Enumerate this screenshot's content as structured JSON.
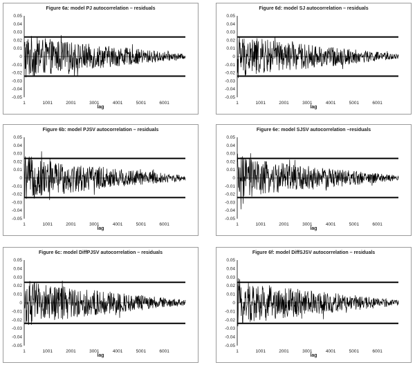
{
  "chart_data": [
    {
      "type": "line",
      "title": "Figure 6a: model PJ autocorrelation – residuals",
      "xlabel": "lag",
      "ylabel": "",
      "x_ticks": [
        "1",
        "1001",
        "2001",
        "3001",
        "4001",
        "5001",
        "6001"
      ],
      "y_ticks": [
        "0.05",
        "0.04",
        "0.03",
        "0.02",
        "0.01",
        "0",
        "-0.01",
        "-0.02",
        "-0.03",
        "-0.04",
        "-0.05"
      ],
      "xlim": [
        1,
        6900
      ],
      "ylim": [
        -0.05,
        0.05
      ],
      "grid": false,
      "reference_lines": [
        0.024,
        -0.024
      ],
      "series": [
        {
          "x": [
            1,
            500,
            1000,
            2000,
            3000,
            4000,
            5000,
            6000,
            6900
          ],
          "values": [
            0.03,
            0.024,
            0.022,
            0.018,
            0.015,
            0.012,
            0.009,
            0.006,
            0.003
          ]
        }
      ]
    },
    {
      "type": "line",
      "title": "Figure 6d: model SJ autocorrelation – residuals",
      "xlabel": "lag",
      "ylabel": "",
      "x_ticks": [
        "1",
        "1001",
        "2001",
        "3001",
        "4001",
        "5001",
        "6001"
      ],
      "y_ticks": [
        "0.05",
        "0.04",
        "0.03",
        "0.02",
        "0.01",
        "0",
        "-0.01",
        "-0.02",
        "-0.03",
        "-0.04",
        "-0.05"
      ],
      "xlim": [
        1,
        6900
      ],
      "ylim": [
        -0.05,
        0.05
      ],
      "grid": false,
      "reference_lines": [
        0.024,
        -0.024
      ],
      "series": [
        {
          "x": [
            1,
            500,
            1000,
            2000,
            3000,
            4000,
            5000,
            6000,
            6900
          ],
          "values": [
            0.03,
            0.024,
            0.022,
            0.018,
            0.015,
            0.012,
            0.009,
            0.006,
            0.003
          ]
        }
      ]
    },
    {
      "type": "line",
      "title": "Figure 6b: model PJSV autocorrelation – residuals",
      "xlabel": "lag",
      "ylabel": "",
      "x_ticks": [
        "1",
        "1001",
        "2001",
        "3001",
        "4001",
        "5001",
        "6001"
      ],
      "y_ticks": [
        "0.05",
        "0.04",
        "0.03",
        "0.02",
        "0.01",
        "0",
        "-0.01",
        "-0.02",
        "-0.03",
        "-0.04",
        "-0.05"
      ],
      "xlim": [
        1,
        6900
      ],
      "ylim": [
        -0.05,
        0.05
      ],
      "grid": false,
      "reference_lines": [
        0.024,
        -0.024
      ],
      "series": [
        {
          "x": [
            1,
            500,
            1000,
            2000,
            3000,
            4000,
            5000,
            6000,
            6900
          ],
          "values": [
            0.03,
            0.024,
            0.022,
            0.018,
            0.015,
            0.012,
            0.009,
            0.006,
            0.003
          ]
        }
      ]
    },
    {
      "type": "line",
      "title": "Figure 6e: model SJSV autocorrelation –residuals",
      "xlabel": "lag",
      "ylabel": "",
      "x_ticks": [
        "1",
        "1001",
        "2001",
        "3001",
        "4001",
        "5001",
        "6001"
      ],
      "y_ticks": [
        "0.05",
        "0.04",
        "0.03",
        "0.02",
        "0.01",
        "0",
        "-0.01",
        "-0.02",
        "-0.03",
        "-0.04",
        "-0.05"
      ],
      "xlim": [
        1,
        6900
      ],
      "ylim": [
        -0.05,
        0.05
      ],
      "grid": false,
      "reference_lines": [
        0.024,
        -0.024
      ],
      "series": [
        {
          "x": [
            1,
            500,
            1000,
            2000,
            3000,
            4000,
            5000,
            6000,
            6900
          ],
          "values": [
            0.03,
            0.024,
            0.022,
            0.018,
            0.015,
            0.012,
            0.009,
            0.006,
            0.003
          ]
        }
      ]
    },
    {
      "type": "line",
      "title": "Figure 6c: model DiffPJSV autocorrelation – residuals",
      "xlabel": "lag",
      "ylabel": "",
      "x_ticks": [
        "1",
        "1001",
        "2001",
        "3001",
        "4001",
        "5001",
        "6001"
      ],
      "y_ticks": [
        "0.05",
        "0.04",
        "0.03",
        "0.02",
        "0.01",
        "0",
        "-0.01",
        "-0.02",
        "-0.03",
        "-0.04",
        "-0.05"
      ],
      "xlim": [
        1,
        6900
      ],
      "ylim": [
        -0.05,
        0.05
      ],
      "grid": false,
      "reference_lines": [
        0.024,
        -0.024
      ],
      "series": [
        {
          "x": [
            1,
            500,
            1000,
            2000,
            3000,
            4000,
            5000,
            6000,
            6900
          ],
          "values": [
            0.03,
            0.024,
            0.022,
            0.018,
            0.015,
            0.012,
            0.009,
            0.006,
            0.003
          ]
        }
      ]
    },
    {
      "type": "line",
      "title": "Figure 6f: model DiffSJSV autocorrelation – residuals",
      "xlabel": "lag",
      "ylabel": "",
      "x_ticks": [
        "1",
        "1001",
        "2001",
        "3001",
        "4001",
        "5001",
        "6001"
      ],
      "y_ticks": [
        "0.05",
        "0.04",
        "0.03",
        "0.02",
        "0.01",
        "0",
        "-0.01",
        "-0.02",
        "-0.03",
        "-0.04",
        "-0.05"
      ],
      "xlim": [
        1,
        6900
      ],
      "ylim": [
        -0.05,
        0.05
      ],
      "grid": false,
      "reference_lines": [
        0.024,
        -0.024
      ],
      "series": [
        {
          "x": [
            1,
            500,
            1000,
            2000,
            3000,
            4000,
            5000,
            6000,
            6900
          ],
          "values": [
            0.03,
            0.024,
            0.022,
            0.018,
            0.015,
            0.012,
            0.009,
            0.006,
            0.003
          ]
        }
      ]
    }
  ],
  "colors": {
    "series": "#000000",
    "reference_line": "#000000",
    "axis": "#000000",
    "border": "#9a9a9a"
  }
}
